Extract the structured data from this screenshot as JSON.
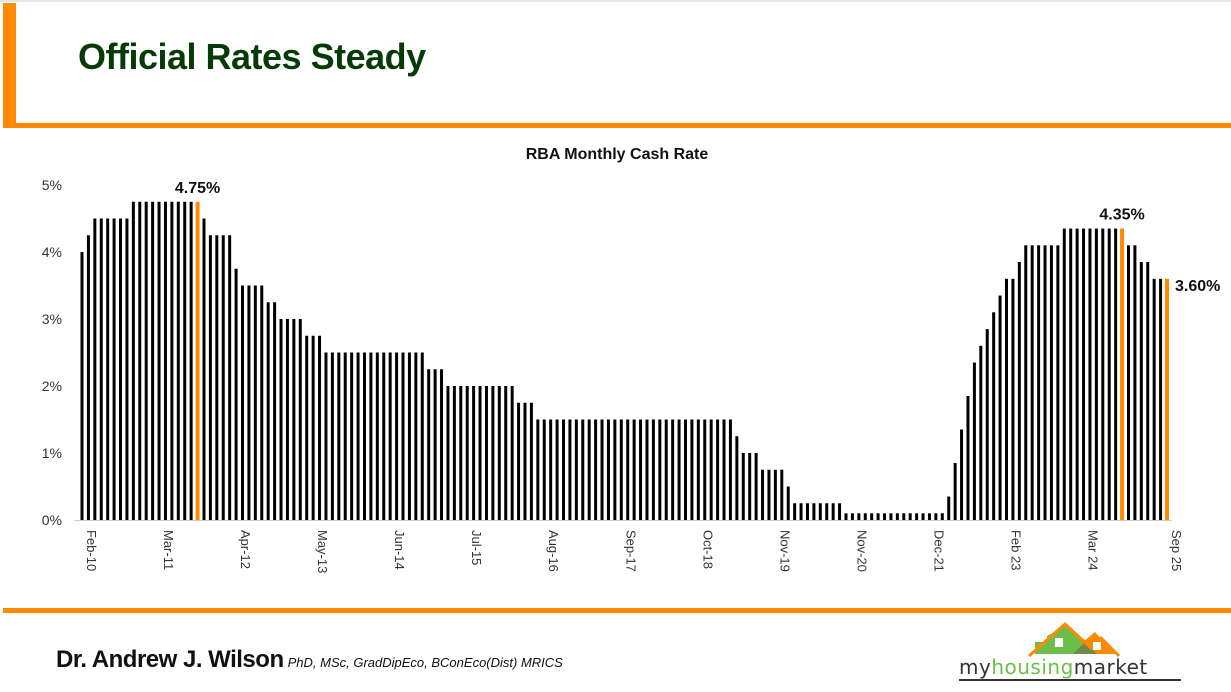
{
  "slide": {
    "title": "Official Rates Steady",
    "author": "Dr. Andrew J. Wilson",
    "credentials": "PhD, MSc, GradDipEco, BConEco(Dist) MRICS",
    "logo_text": {
      "part1": "my",
      "part2": "housing",
      "part3": "market"
    },
    "colors": {
      "accent": "#ff8a00",
      "title": "#063a06",
      "logo_green": "#6cc04a",
      "logo_orange": "#ff8a00"
    }
  },
  "chart_data": {
    "type": "bar",
    "title": "RBA Monthly Cash Rate",
    "xlabel": "",
    "ylabel": "",
    "ylim": [
      0,
      5
    ],
    "y_ticks": [
      "0%",
      "1%",
      "2%",
      "3%",
      "4%",
      "5%"
    ],
    "grid": false,
    "bar_color": "#000000",
    "highlight_color": "#ff8a00",
    "values": [
      4.0,
      4.25,
      4.5,
      4.5,
      4.5,
      4.5,
      4.5,
      4.5,
      4.75,
      4.75,
      4.75,
      4.75,
      4.75,
      4.75,
      4.75,
      4.75,
      4.75,
      4.75,
      4.75,
      4.5,
      4.25,
      4.25,
      4.25,
      4.25,
      3.75,
      3.5,
      3.5,
      3.5,
      3.5,
      3.25,
      3.25,
      3.0,
      3.0,
      3.0,
      3.0,
      2.75,
      2.75,
      2.75,
      2.5,
      2.5,
      2.5,
      2.5,
      2.5,
      2.5,
      2.5,
      2.5,
      2.5,
      2.5,
      2.5,
      2.5,
      2.5,
      2.5,
      2.5,
      2.5,
      2.25,
      2.25,
      2.25,
      2.0,
      2.0,
      2.0,
      2.0,
      2.0,
      2.0,
      2.0,
      2.0,
      2.0,
      2.0,
      2.0,
      1.75,
      1.75,
      1.75,
      1.5,
      1.5,
      1.5,
      1.5,
      1.5,
      1.5,
      1.5,
      1.5,
      1.5,
      1.5,
      1.5,
      1.5,
      1.5,
      1.5,
      1.5,
      1.5,
      1.5,
      1.5,
      1.5,
      1.5,
      1.5,
      1.5,
      1.5,
      1.5,
      1.5,
      1.5,
      1.5,
      1.5,
      1.5,
      1.5,
      1.5,
      1.25,
      1.0,
      1.0,
      1.0,
      0.75,
      0.75,
      0.75,
      0.75,
      0.5,
      0.25,
      0.25,
      0.25,
      0.25,
      0.25,
      0.25,
      0.25,
      0.25,
      0.1,
      0.1,
      0.1,
      0.1,
      0.1,
      0.1,
      0.1,
      0.1,
      0.1,
      0.1,
      0.1,
      0.1,
      0.1,
      0.1,
      0.1,
      0.1,
      0.35,
      0.85,
      1.35,
      1.85,
      2.35,
      2.6,
      2.85,
      3.1,
      3.35,
      3.6,
      3.6,
      3.85,
      4.1,
      4.1,
      4.1,
      4.1,
      4.1,
      4.1,
      4.35,
      4.35,
      4.35,
      4.35,
      4.35,
      4.35,
      4.35,
      4.35,
      4.35,
      4.35,
      4.1,
      4.1,
      3.85,
      3.85,
      3.6,
      3.6,
      3.6
    ],
    "x_ticks": [
      {
        "index": 0,
        "label": "Feb-10"
      },
      {
        "index": 12,
        "label": "Mar-11"
      },
      {
        "index": 24,
        "label": "Apr-12"
      },
      {
        "index": 36,
        "label": "May-13"
      },
      {
        "index": 48,
        "label": "Jun-14"
      },
      {
        "index": 60,
        "label": "Jul-15"
      },
      {
        "index": 72,
        "label": "Aug-16"
      },
      {
        "index": 84,
        "label": "Sep-17"
      },
      {
        "index": 96,
        "label": "Oct-18"
      },
      {
        "index": 108,
        "label": "Nov-19"
      },
      {
        "index": 120,
        "label": "Nov-20"
      },
      {
        "index": 132,
        "label": "Dec-21"
      },
      {
        "index": 144,
        "label": "Feb 23"
      },
      {
        "index": 156,
        "label": "Mar 24"
      },
      {
        "index": 169,
        "label": "Sep 25"
      }
    ],
    "annotations": [
      {
        "index": 18,
        "label": "4.75%"
      },
      {
        "index": 162,
        "label": "4.35%"
      },
      {
        "index": 169,
        "label": "3.60%"
      }
    ]
  }
}
